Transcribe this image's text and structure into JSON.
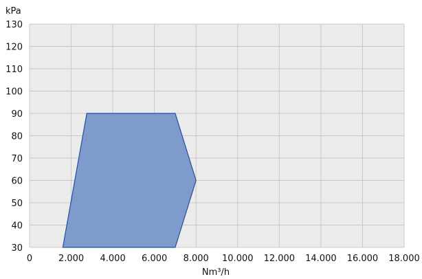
{
  "chart_data": {
    "type": "area",
    "title": "",
    "xlabel": "Nm³/h",
    "ylabel": "kPa",
    "xlim": [
      0,
      18000
    ],
    "ylim": [
      30,
      130
    ],
    "x_ticks": [
      0,
      2000,
      4000,
      6000,
      8000,
      10000,
      12000,
      14000,
      16000,
      18000
    ],
    "x_tick_labels": [
      "0",
      "2.000",
      "4.000",
      "6.000",
      "8.000",
      "10.000",
      "12.000",
      "14.000",
      "16.000",
      "18.000"
    ],
    "y_ticks": [
      30,
      40,
      50,
      60,
      70,
      80,
      90,
      100,
      110,
      120,
      130
    ],
    "y_tick_labels": [
      "30",
      "40",
      "50",
      "60",
      "70",
      "80",
      "90",
      "100",
      "110",
      "120",
      "130"
    ],
    "grid": true,
    "series": [
      {
        "points": [
          {
            "x": 1600,
            "y": 30
          },
          {
            "x": 2750,
            "y": 90
          },
          {
            "x": 7000,
            "y": 90
          },
          {
            "x": 8000,
            "y": 60
          },
          {
            "x": 7000,
            "y": 30
          }
        ]
      }
    ]
  },
  "colors": {
    "plot_background": "#ebebeb",
    "grid": "#c8c8c8",
    "fill": "#7f9bcc",
    "stroke": "#1f4f9e"
  }
}
